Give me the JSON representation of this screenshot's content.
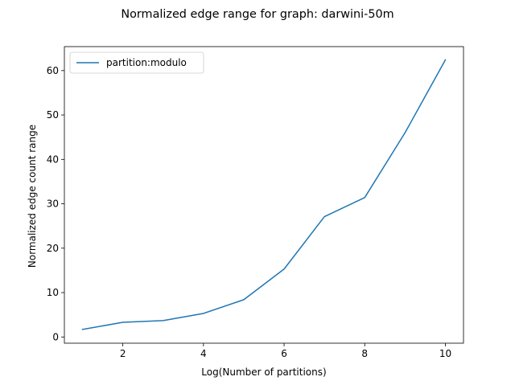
{
  "chart_data": {
    "type": "line",
    "title": "Normalized edge range for graph: darwini-50m",
    "xlabel": "Log(Number of partitions)",
    "ylabel": "Normalized edge count range",
    "xlim": [
      0.55,
      10.45
    ],
    "ylim": [
      -1.4,
      65.4
    ],
    "xticks": [
      2,
      4,
      6,
      8,
      10
    ],
    "yticks": [
      0,
      10,
      20,
      30,
      40,
      50,
      60
    ],
    "grid": false,
    "legend_position": "upper-left",
    "series": [
      {
        "name": "partition:modulo",
        "color": "#1f77b4",
        "x": [
          1,
          2,
          3,
          4,
          5,
          6,
          7,
          8,
          9,
          10
        ],
        "y": [
          1.7,
          3.3,
          3.7,
          5.3,
          8.4,
          15.3,
          27.1,
          31.4,
          46.0,
          62.4
        ]
      }
    ]
  }
}
